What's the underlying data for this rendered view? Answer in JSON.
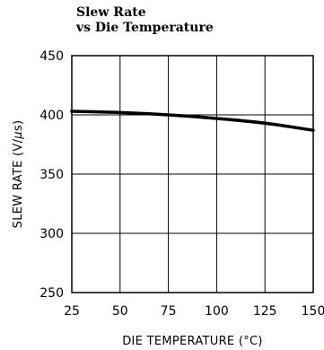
{
  "chart_data": {
    "type": "line",
    "title_lines": [
      "Slew Rate",
      "vs Die Temperature"
    ],
    "xlabel_text": "DIE TEMPERATURE (",
    "xlabel_unit": "°C)",
    "ylabel_text": "SLEW RATE (V/",
    "ylabel_unit": "s)",
    "xlim": [
      25,
      150
    ],
    "ylim": [
      250,
      450
    ],
    "xticks": [
      25,
      50,
      75,
      100,
      125,
      150
    ],
    "yticks": [
      250,
      300,
      350,
      400,
      450
    ],
    "grid": true,
    "series": [
      {
        "x": [
          25,
          50,
          75,
          100,
          125,
          150
        ],
        "y": [
          403,
          402,
          400,
          397,
          393,
          387
        ]
      }
    ]
  }
}
